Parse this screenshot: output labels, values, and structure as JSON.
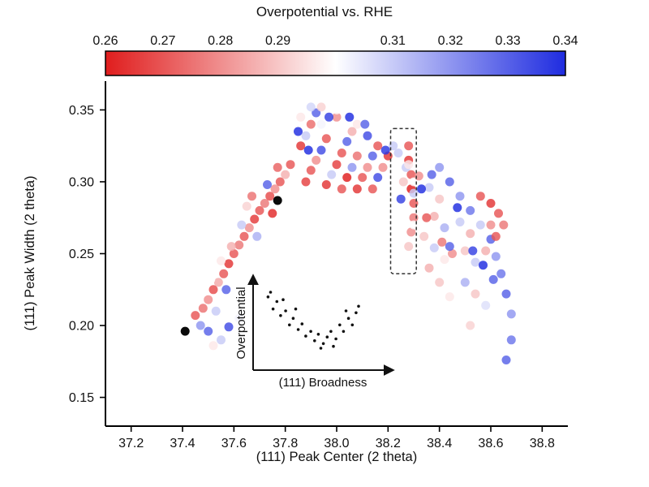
{
  "chart_data": {
    "type": "scatter",
    "title": "Overpotential vs. RHE",
    "xlabel": "(111) Peak Center (2 theta)",
    "ylabel": "(111) Peak Width (2 theta)",
    "x_range": [
      37.1,
      38.9
    ],
    "y_range": [
      0.13,
      0.37
    ],
    "x_tick_labels": [
      "37.2",
      "37.4",
      "37.6",
      "37.8",
      "38.0",
      "38.2",
      "38.4",
      "38.6",
      "38.8"
    ],
    "y_tick_labels": [
      "0.15",
      "0.20",
      "0.25",
      "0.30",
      "0.35"
    ],
    "grid": false,
    "colorbar": {
      "label": "Overpotential vs. RHE",
      "min": 0.26,
      "max": 0.34,
      "tick_labels": [
        "0.26",
        "0.27",
        "0.28",
        "0.29",
        "0.31",
        "0.32",
        "0.33",
        "0.34"
      ],
      "tick_values": [
        0.26,
        0.27,
        0.28,
        0.29,
        0.31,
        0.32,
        0.33,
        0.34
      ],
      "color_low": "#e01d1d",
      "color_mid": "#ffffff",
      "color_high": "#1f2ce0",
      "tick_label_color": "#9e382c"
    },
    "highlight_box": {
      "x1": 38.21,
      "x2": 38.31,
      "y1": 0.236,
      "y2": 0.337
    },
    "black_points": [
      [
        37.41,
        0.196
      ],
      [
        37.77,
        0.287
      ]
    ],
    "points": [
      [
        37.45,
        0.207,
        0.27
      ],
      [
        37.48,
        0.212,
        0.275
      ],
      [
        37.5,
        0.218,
        0.28
      ],
      [
        37.52,
        0.225,
        0.268
      ],
      [
        37.54,
        0.23,
        0.285
      ],
      [
        37.56,
        0.236,
        0.27
      ],
      [
        37.58,
        0.243,
        0.264
      ],
      [
        37.6,
        0.25,
        0.27
      ],
      [
        37.62,
        0.256,
        0.276
      ],
      [
        37.64,
        0.262,
        0.27
      ],
      [
        37.66,
        0.268,
        0.28
      ],
      [
        37.68,
        0.274,
        0.265
      ],
      [
        37.7,
        0.28,
        0.27
      ],
      [
        37.72,
        0.285,
        0.276
      ],
      [
        37.74,
        0.29,
        0.268
      ],
      [
        37.76,
        0.295,
        0.28
      ],
      [
        37.78,
        0.3,
        0.27
      ],
      [
        37.8,
        0.305,
        0.286
      ],
      [
        37.47,
        0.2,
        0.32
      ],
      [
        37.53,
        0.21,
        0.31
      ],
      [
        37.57,
        0.225,
        0.33
      ],
      [
        37.61,
        0.24,
        0.3
      ],
      [
        37.55,
        0.245,
        0.296
      ],
      [
        37.63,
        0.27,
        0.31
      ],
      [
        37.59,
        0.255,
        0.286
      ],
      [
        37.51,
        0.232,
        0.3
      ],
      [
        37.65,
        0.283,
        0.292
      ],
      [
        37.69,
        0.262,
        0.315
      ],
      [
        37.71,
        0.27,
        0.3
      ],
      [
        37.67,
        0.29,
        0.275
      ],
      [
        37.73,
        0.298,
        0.33
      ],
      [
        37.75,
        0.278,
        0.262
      ],
      [
        37.77,
        0.31,
        0.272
      ],
      [
        37.5,
        0.196,
        0.33
      ],
      [
        37.55,
        0.19,
        0.31
      ],
      [
        37.58,
        0.199,
        0.334
      ],
      [
        37.62,
        0.205,
        0.302
      ],
      [
        37.52,
        0.186,
        0.296
      ],
      [
        37.82,
        0.312,
        0.27
      ],
      [
        37.84,
        0.318,
        0.3
      ],
      [
        37.86,
        0.325,
        0.264
      ],
      [
        37.88,
        0.332,
        0.31
      ],
      [
        37.9,
        0.34,
        0.274
      ],
      [
        37.92,
        0.348,
        0.33
      ],
      [
        37.94,
        0.352,
        0.292
      ],
      [
        37.88,
        0.3,
        0.266
      ],
      [
        37.9,
        0.308,
        0.27
      ],
      [
        37.92,
        0.315,
        0.28
      ],
      [
        37.94,
        0.322,
        0.334
      ],
      [
        37.96,
        0.33,
        0.27
      ],
      [
        37.98,
        0.338,
        0.3
      ],
      [
        38.0,
        0.345,
        0.28
      ],
      [
        37.96,
        0.298,
        0.264
      ],
      [
        37.98,
        0.305,
        0.31
      ],
      [
        38.0,
        0.312,
        0.266
      ],
      [
        38.02,
        0.32,
        0.27
      ],
      [
        38.04,
        0.328,
        0.33
      ],
      [
        38.06,
        0.335,
        0.286
      ],
      [
        38.02,
        0.295,
        0.27
      ],
      [
        38.04,
        0.303,
        0.26
      ],
      [
        38.06,
        0.31,
        0.32
      ],
      [
        38.08,
        0.318,
        0.275
      ],
      [
        38.1,
        0.325,
        0.3
      ],
      [
        38.12,
        0.332,
        0.334
      ],
      [
        38.08,
        0.295,
        0.264
      ],
      [
        38.1,
        0.303,
        0.27
      ],
      [
        38.12,
        0.31,
        0.28
      ],
      [
        38.14,
        0.318,
        0.33
      ],
      [
        38.16,
        0.325,
        0.27
      ],
      [
        38.18,
        0.332,
        0.3
      ],
      [
        38.14,
        0.295,
        0.27
      ],
      [
        38.16,
        0.303,
        0.334
      ],
      [
        38.18,
        0.31,
        0.28
      ],
      [
        38.2,
        0.318,
        0.264
      ],
      [
        38.22,
        0.325,
        0.31
      ],
      [
        37.86,
        0.345,
        0.296
      ],
      [
        37.9,
        0.352,
        0.308
      ],
      [
        38.0,
        0.35,
        0.3
      ],
      [
        38.08,
        0.34,
        0.296
      ],
      [
        37.94,
        0.34,
        0.302
      ],
      [
        38.2,
        0.33,
        0.3
      ],
      [
        37.85,
        0.335,
        0.34
      ],
      [
        37.97,
        0.345,
        0.336
      ],
      [
        38.05,
        0.345,
        0.34
      ],
      [
        38.11,
        0.34,
        0.33
      ],
      [
        37.89,
        0.322,
        0.34
      ],
      [
        38.19,
        0.322,
        0.338
      ],
      [
        38.28,
        0.325,
        0.27
      ],
      [
        38.28,
        0.315,
        0.264
      ],
      [
        38.29,
        0.305,
        0.27
      ],
      [
        38.29,
        0.295,
        0.26
      ],
      [
        38.3,
        0.285,
        0.27
      ],
      [
        38.3,
        0.275,
        0.276
      ],
      [
        38.29,
        0.265,
        0.28
      ],
      [
        38.28,
        0.255,
        0.29
      ],
      [
        38.3,
        0.3,
        0.3
      ],
      [
        38.27,
        0.31,
        0.31
      ],
      [
        38.24,
        0.32,
        0.31
      ],
      [
        38.28,
        0.312,
        0.296
      ],
      [
        38.32,
        0.304,
        0.28
      ],
      [
        38.36,
        0.296,
        0.31
      ],
      [
        38.4,
        0.288,
        0.29
      ],
      [
        38.44,
        0.28,
        0.3
      ],
      [
        38.48,
        0.272,
        0.31
      ],
      [
        38.52,
        0.264,
        0.286
      ],
      [
        38.26,
        0.3,
        0.29
      ],
      [
        38.3,
        0.292,
        0.31
      ],
      [
        38.34,
        0.284,
        0.3
      ],
      [
        38.38,
        0.276,
        0.286
      ],
      [
        38.42,
        0.268,
        0.315
      ],
      [
        38.46,
        0.26,
        0.3
      ],
      [
        38.5,
        0.252,
        0.29
      ],
      [
        38.54,
        0.244,
        0.31
      ],
      [
        38.3,
        0.27,
        0.3
      ],
      [
        38.34,
        0.262,
        0.29
      ],
      [
        38.38,
        0.254,
        0.31
      ],
      [
        38.42,
        0.246,
        0.296
      ],
      [
        38.46,
        0.238,
        0.3
      ],
      [
        38.5,
        0.23,
        0.315
      ],
      [
        38.54,
        0.222,
        0.29
      ],
      [
        38.58,
        0.214,
        0.306
      ],
      [
        38.4,
        0.31,
        0.32
      ],
      [
        38.44,
        0.3,
        0.33
      ],
      [
        38.48,
        0.29,
        0.32
      ],
      [
        38.52,
        0.28,
        0.326
      ],
      [
        38.56,
        0.27,
        0.31
      ],
      [
        38.6,
        0.26,
        0.33
      ],
      [
        38.62,
        0.248,
        0.32
      ],
      [
        38.64,
        0.236,
        0.326
      ],
      [
        38.66,
        0.222,
        0.33
      ],
      [
        38.68,
        0.208,
        0.32
      ],
      [
        38.68,
        0.19,
        0.326
      ],
      [
        38.66,
        0.176,
        0.33
      ],
      [
        38.56,
        0.29,
        0.27
      ],
      [
        38.6,
        0.285,
        0.264
      ],
      [
        38.63,
        0.278,
        0.27
      ],
      [
        38.65,
        0.27,
        0.276
      ],
      [
        38.6,
        0.27,
        0.28
      ],
      [
        38.62,
        0.262,
        0.27
      ],
      [
        38.58,
        0.252,
        0.286
      ],
      [
        38.36,
        0.24,
        0.286
      ],
      [
        38.4,
        0.23,
        0.29
      ],
      [
        38.44,
        0.22,
        0.296
      ],
      [
        38.48,
        0.21,
        0.3
      ],
      [
        38.52,
        0.2,
        0.292
      ],
      [
        38.56,
        0.19,
        0.3
      ],
      [
        38.45,
        0.25,
        0.28
      ],
      [
        38.35,
        0.275,
        0.27
      ],
      [
        38.41,
        0.258,
        0.276
      ],
      [
        38.33,
        0.295,
        0.34
      ],
      [
        38.37,
        0.305,
        0.33
      ],
      [
        38.25,
        0.288,
        0.336
      ],
      [
        38.47,
        0.282,
        0.34
      ],
      [
        38.53,
        0.252,
        0.336
      ],
      [
        38.57,
        0.242,
        0.34
      ],
      [
        38.61,
        0.232,
        0.33
      ],
      [
        38.44,
        0.255,
        0.33
      ]
    ],
    "inset": {
      "xlabel": "(111) Broadness",
      "ylabel": "Overpotential",
      "points": [
        [
          0.08,
          0.75
        ],
        [
          0.12,
          0.62
        ],
        [
          0.15,
          0.7
        ],
        [
          0.18,
          0.55
        ],
        [
          0.22,
          0.6
        ],
        [
          0.25,
          0.45
        ],
        [
          0.28,
          0.52
        ],
        [
          0.32,
          0.4
        ],
        [
          0.35,
          0.46
        ],
        [
          0.38,
          0.33
        ],
        [
          0.42,
          0.38
        ],
        [
          0.45,
          0.28
        ],
        [
          0.48,
          0.35
        ],
        [
          0.52,
          0.25
        ],
        [
          0.55,
          0.32
        ],
        [
          0.58,
          0.38
        ],
        [
          0.62,
          0.3
        ],
        [
          0.65,
          0.45
        ],
        [
          0.68,
          0.38
        ],
        [
          0.72,
          0.52
        ],
        [
          0.75,
          0.45
        ],
        [
          0.78,
          0.58
        ],
        [
          0.1,
          0.8
        ],
        [
          0.2,
          0.72
        ],
        [
          0.3,
          0.62
        ],
        [
          0.5,
          0.2
        ],
        [
          0.6,
          0.22
        ],
        [
          0.7,
          0.6
        ],
        [
          0.8,
          0.65
        ]
      ]
    }
  }
}
